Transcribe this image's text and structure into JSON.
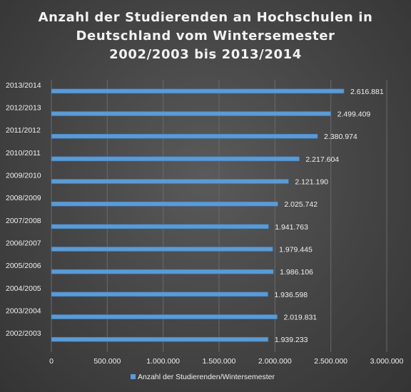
{
  "chart_data": {
    "type": "bar",
    "orientation": "horizontal",
    "title": "Anzahl der Studierenden an Hochschulen in Deutschland vom Wintersemester 2002/2003 bis 2013/2014",
    "title_lines": [
      "Anzahl der Studierenden an Hochschulen in",
      "Deutschland vom Wintersemester",
      "2002/2003 bis 2013/2014"
    ],
    "categories": [
      "2002/2003",
      "2003/2004",
      "2004/2005",
      "2005/2006",
      "2006/2007",
      "2007/2008",
      "2008/2009",
      "2009/2010",
      "2010/2011",
      "2011/2012",
      "2012/2013",
      "2013/2014"
    ],
    "series": [
      {
        "name": "Anzahl der Studierenden/Wintersemester",
        "values": [
          1939233,
          2019831,
          1936598,
          1986106,
          1979445,
          1941763,
          2025742,
          2121190,
          2217604,
          2380974,
          2499409,
          2616881
        ],
        "value_labels": [
          "1.939.233",
          "2.019.831",
          "1.936.598",
          "1.986.106",
          "1.979.445",
          "1.941.763",
          "2.025.742",
          "2.121.190",
          "2.217.604",
          "2.380.974",
          "2.499.409",
          "2.616.881"
        ]
      }
    ],
    "x_ticks": [
      0,
      500000,
      1000000,
      1500000,
      2000000,
      2500000,
      3000000
    ],
    "x_tick_labels": [
      "0",
      "500.000",
      "1.000.000",
      "1.500.000",
      "2.000.000",
      "2.500.000",
      "3.000.000"
    ],
    "xlim": [
      0,
      3000000
    ],
    "xlabel": "",
    "ylabel": "",
    "grid": true,
    "legend_position": "bottom",
    "colors": {
      "bar": "#5b9bd5",
      "bar_edge": "#3f7cbd",
      "background": "#444444",
      "text": "#f2f2f2",
      "grid": "#6a6a6a"
    }
  }
}
